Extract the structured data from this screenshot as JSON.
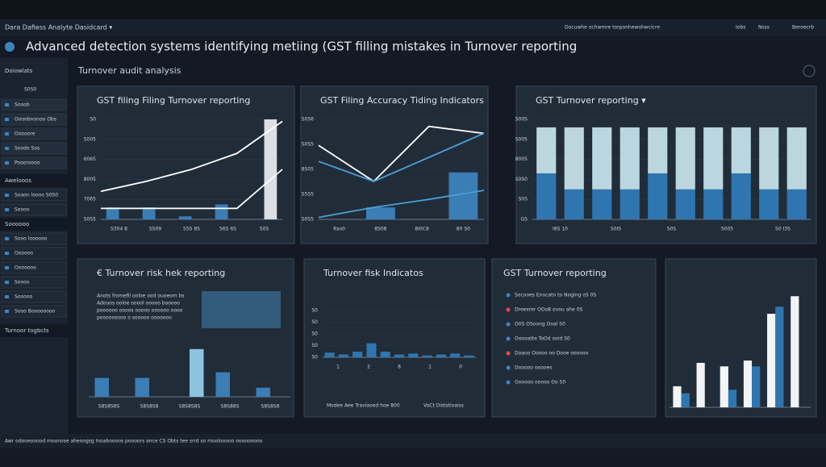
{
  "topbar": {
    "title": "Dara Dafiess Analyte Dasidcard ▾",
    "tabs": [
      "Docuwhe ochwmre torponhewohwcicre",
      "Iobs",
      "Nsss",
      "Beroecrb"
    ]
  },
  "header": {
    "title": "Advanced detection systems identifying metiing (GST filling mistakes in Turnover reporting"
  },
  "sidebar": {
    "title": "Doiowlats",
    "controls": "S0S0",
    "items": [
      "Sooob",
      "Ooonbnonoo Obs",
      "Ooooore",
      "Soodo Sos",
      "Poooroooo"
    ],
    "section1": "Awelooos",
    "items2": [
      "Soaon loooo S0S0",
      "Soooo"
    ],
    "section2": "Soooooo",
    "items3": [
      "Sooo loooooo",
      "Oooooo",
      "Ooooooo",
      "Soooo",
      "Sooooo",
      "Sooo Boooooooo"
    ],
    "section3": "Turnoor togbcts"
  },
  "subtitle": "Turnover audit analysis",
  "charts": [
    {
      "title": "GST filing Filing Turnover reporting",
      "ylabels": [
        "S0S5",
        "7065",
        "8005",
        "6065",
        "S005",
        "S0"
      ],
      "categories": [
        "S304 8",
        "SS09",
        "SSS 8S",
        "S6S 6S",
        "S0S"
      ],
      "bars": [
        {
          "color": "#3b7db5",
          "values": [
            12,
            12,
            3,
            15,
            null
          ]
        },
        {
          "color": "#d9dfe4",
          "values": [
            null,
            null,
            null,
            null,
            100
          ]
        }
      ],
      "lines": [
        {
          "color": "#ffffff",
          "values": [
            28,
            38,
            50,
            66,
            98
          ]
        },
        {
          "color": "#ffffff",
          "values": [
            11,
            11,
            11,
            11,
            50
          ]
        }
      ]
    },
    {
      "title": "GST Filing Accuracy Tiding Indicators",
      "ylabels": [
        "S0S5",
        "S5S5",
        "8S05",
        "S0S5",
        "S0S6"
      ],
      "categories": [
        "Rso0",
        "8S08",
        "8I0C8",
        "80 S0"
      ],
      "bars": [
        {
          "color": "#3b7db5",
          "values": [
            null,
            12,
            null,
            47
          ]
        }
      ],
      "lines": [
        {
          "color": "#ffffff",
          "values": [
            74,
            38,
            93,
            86
          ]
        },
        {
          "color": "#4a9fd6",
          "values": [
            58,
            38,
            62,
            86
          ]
        },
        {
          "color": "#4a9fd6",
          "values": [
            2,
            12,
            20,
            29
          ]
        }
      ]
    },
    {
      "title": "GST Turnover reporting ▾",
      "ylabels": [
        "GS",
        "S0S",
        "S0S0",
        "8005",
        "S005",
        "S00S"
      ],
      "categories": [
        "I8S 10",
        "S0IS",
        "S0S",
        "S005",
        "S0 I3S"
      ],
      "stacked": true,
      "bars": [
        {
          "color": "#2f76b0",
          "values": [
            46,
            30,
            30,
            30,
            46,
            30,
            30,
            46,
            30,
            30
          ]
        },
        {
          "color": "#bcd6e0",
          "values": [
            46,
            62,
            62,
            62,
            46,
            62,
            62,
            46,
            62,
            62
          ]
        }
      ],
      "lines": []
    },
    {
      "title": "€ Turnover risk hek reporting",
      "ylabels": [],
      "categories": [
        "S8S8S8S",
        "S8S8S8",
        "S8S8S8S",
        "S8S88S",
        "S8S8S8"
      ],
      "note": [
        "Anots fromefil ooloe ood ouoeom bs",
        "Adouos ooloe ooool ooooo booooo",
        "poooooo oooos ooooo oooooo oooo",
        "pooooosooo o sooooo ooooooo"
      ],
      "bars": [
        {
          "color": "#3b7db5",
          "values": [
            27,
            27,
            null,
            35,
            13
          ]
        },
        {
          "color": "#8cc4de",
          "values": [
            null,
            null,
            68,
            null,
            null
          ]
        }
      ],
      "lines": []
    },
    {
      "title": "Turnover fisk Indicatos",
      "ylabels": [
        "S0",
        "S0",
        "S0",
        "S0",
        "S0"
      ],
      "categories": [
        "1",
        "2",
        "8",
        "1",
        "0"
      ],
      "footer": [
        "Modee Aee Traviaoed hoe 800",
        "VoCt Diststioaiss"
      ],
      "bars": [
        {
          "color": "#2f76b0",
          "values": [
            10,
            6,
            12,
            30,
            12,
            6,
            8,
            4,
            6,
            8,
            4
          ]
        }
      ],
      "lines": []
    },
    {
      "title": "",
      "ylabels": [],
      "categories": [],
      "bars": [
        {
          "color": "#f2f4f6",
          "values": [
            18,
            38,
            35,
            40,
            80,
            95
          ]
        },
        {
          "color": "#2f76b0",
          "values": [
            12,
            null,
            15,
            35,
            86,
            null
          ]
        }
      ],
      "lines": []
    }
  ],
  "list_panel": {
    "title": "GST Turnover reporting",
    "items": [
      "Socooes Enocatn to Noging oS 0S",
      "Dreexrer OOo8 ovou ahe 0S",
      "O0S OSoong Ooal S0",
      "Ooooatte ToOd ooid S0",
      "Doaoo Ooooo oo Dooe oooooo",
      "Dooooo ooooes",
      "Oooooo ooooo Oo S0"
    ]
  },
  "footer": "Awr odooeooood moonose aheoogsg Inoaboooos poooors ance CS Obts tee srrd so moolooooo ooooooooo"
}
